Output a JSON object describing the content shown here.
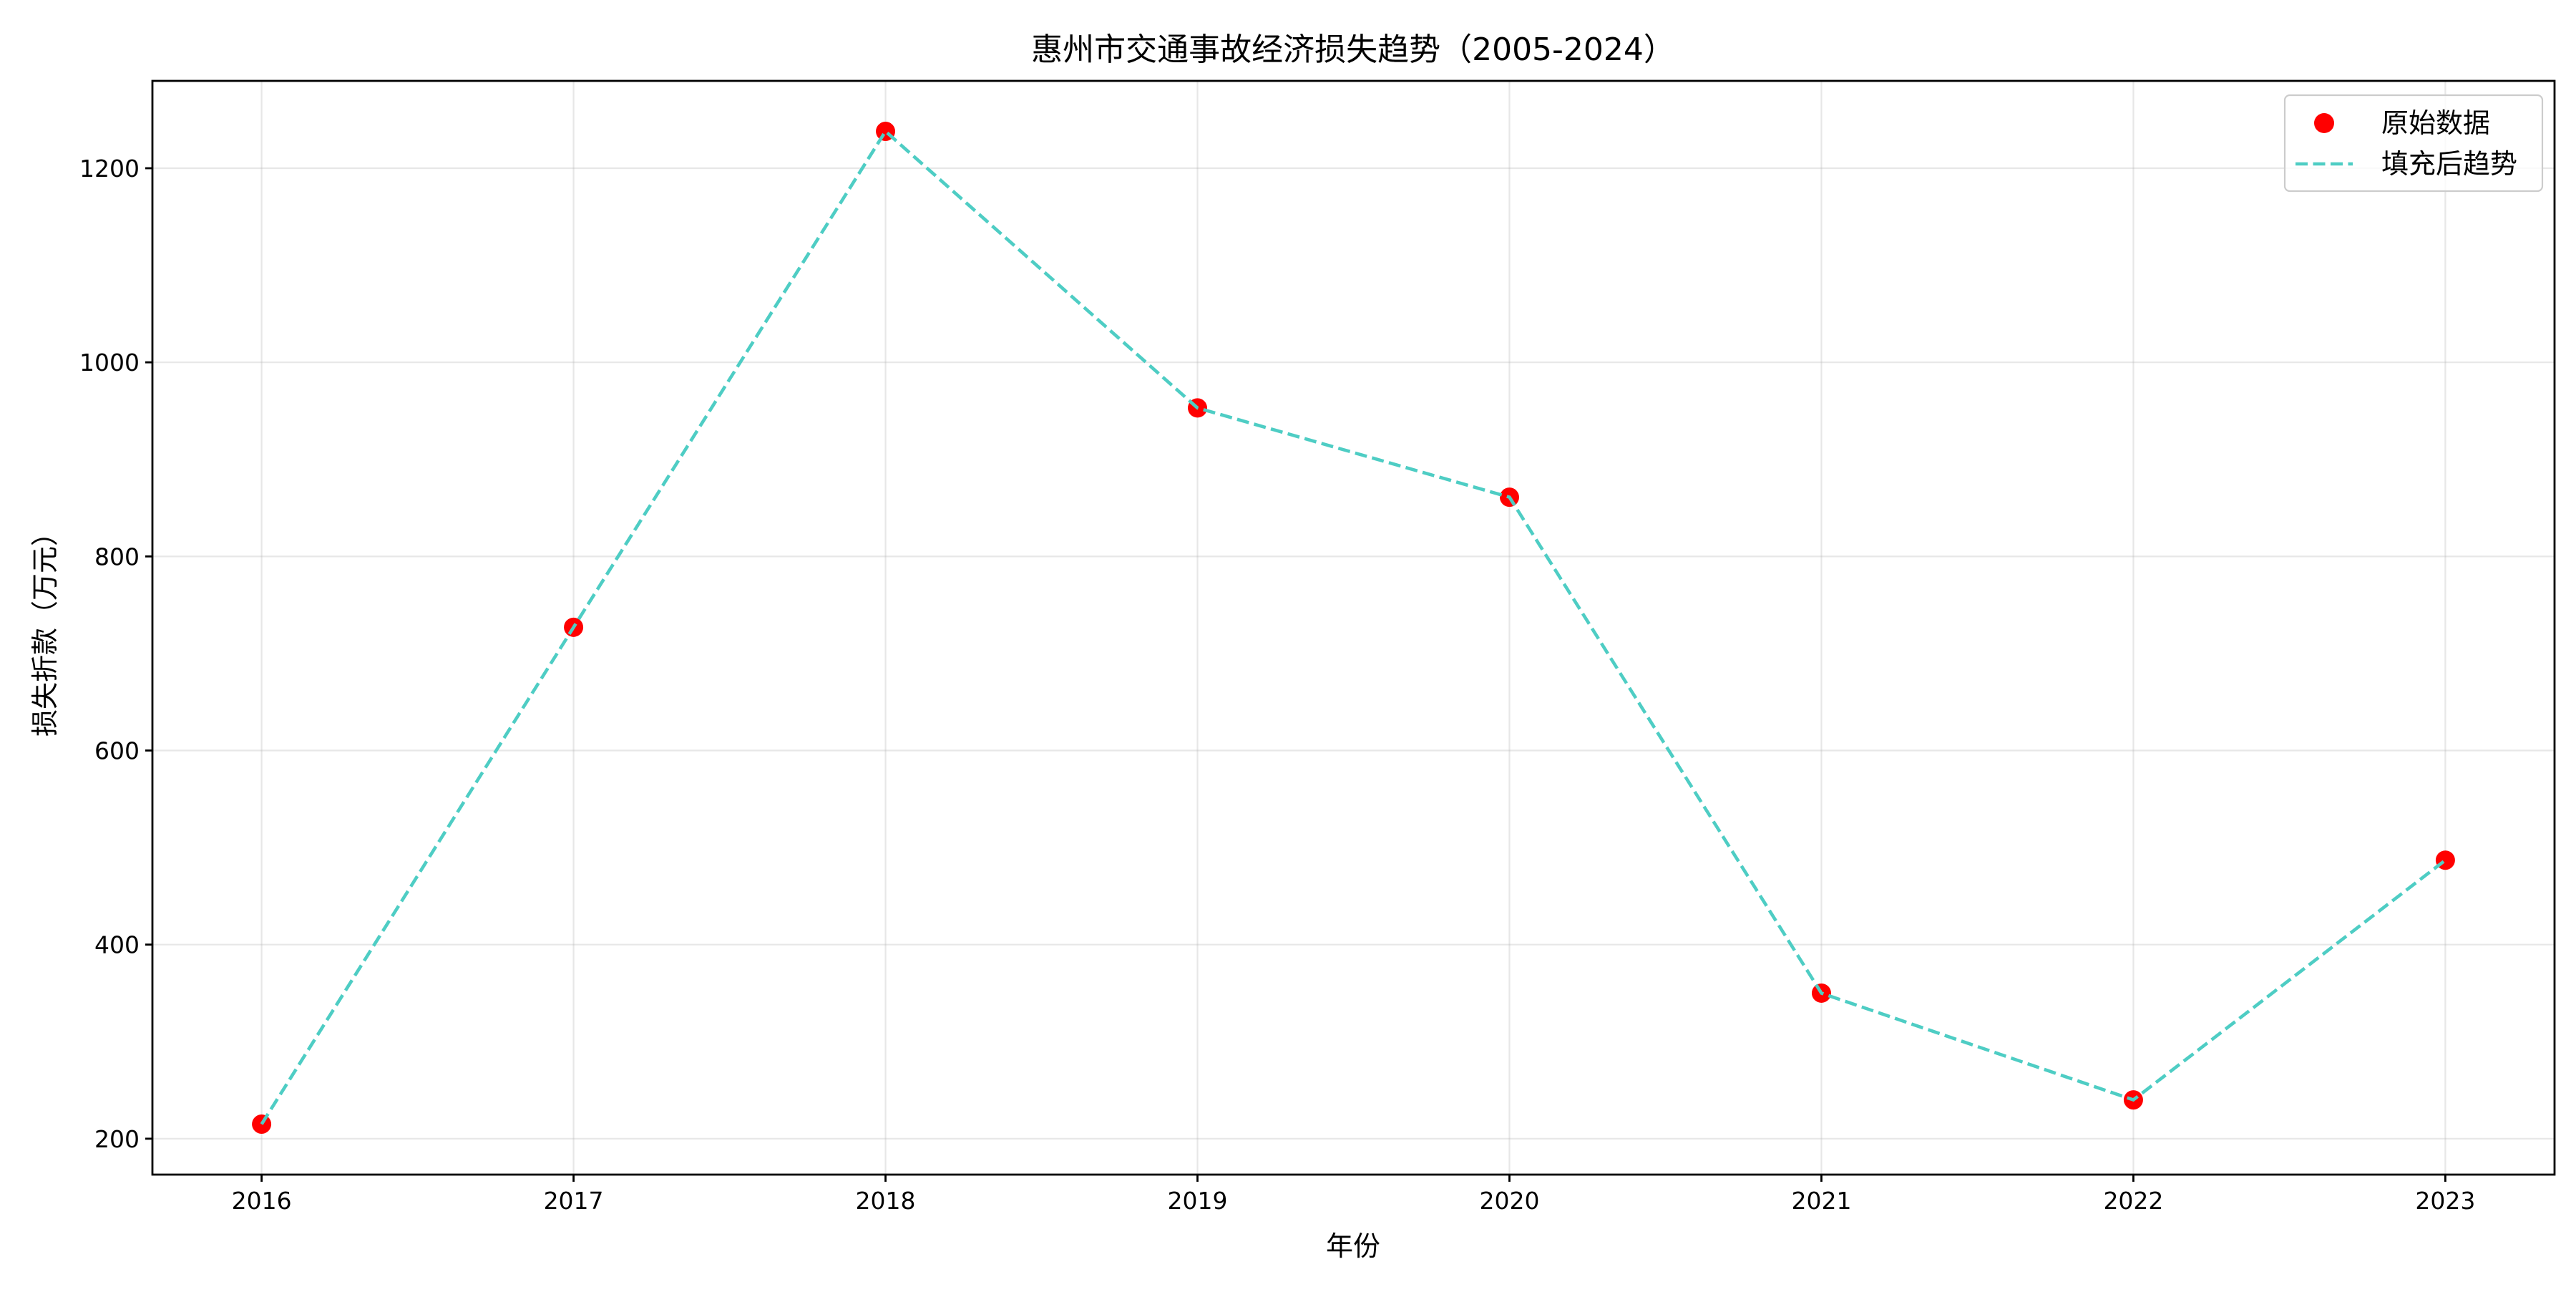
{
  "chart_data": {
    "type": "line",
    "title": "惠州市交通事故经济损失趋势（2005-2024）",
    "xlabel": "年份",
    "ylabel": "损失折款（万元）",
    "x": [
      2016,
      2017,
      2018,
      2019,
      2020,
      2021,
      2022,
      2023
    ],
    "xlim": [
      2015.65,
      2023.35
    ],
    "ylim": [
      163,
      1290
    ],
    "y_ticks": [
      200,
      400,
      600,
      800,
      1000,
      1200
    ],
    "grid": true,
    "legend_position": "top-right",
    "series": [
      {
        "name": "原始数据",
        "kind": "scatter",
        "color": "#ff0000",
        "values": [
          215,
          727,
          1238,
          953,
          861,
          350,
          240,
          487
        ]
      },
      {
        "name": "填充后趋势",
        "kind": "line",
        "style": "dashed",
        "color": "#4ecdc4",
        "values": [
          215,
          727,
          1238,
          953,
          861,
          350,
          240,
          487
        ]
      }
    ]
  }
}
